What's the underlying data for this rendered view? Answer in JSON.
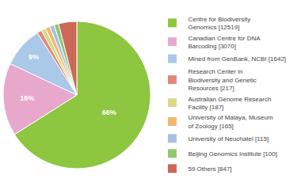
{
  "chart_data": {
    "type": "pie",
    "categories": [
      "Centre for Biodiversity\nGenomics [12519]",
      "Canadian Centre for DNA\nBarcoding [3070]",
      "Mined from GenBank, NCBI [1642]",
      "Research Center in\nBiodiversity and Genetic\nResources [217]",
      "Australian Genome Research\nFacility [187]",
      "University of Malaya, Museum\nof Zoology [165]",
      "University of Neuchatel [115]",
      "Beijing Genomics Institute [100]",
      "59 Others [847]"
    ],
    "values": [
      66,
      16,
      9,
      1,
      1,
      1,
      1,
      1,
      4
    ],
    "value_labels": [
      "66%",
      "16%",
      "9%",
      null,
      null,
      null,
      null,
      null,
      null
    ],
    "colors": [
      "#8dc63f",
      "#e8a8cc",
      "#aac8e8",
      "#e08878",
      "#d8d888",
      "#f0b870",
      "#a8c0e0",
      "#90c870",
      "#cc6858"
    ],
    "data_labels": true,
    "legend": "right"
  }
}
